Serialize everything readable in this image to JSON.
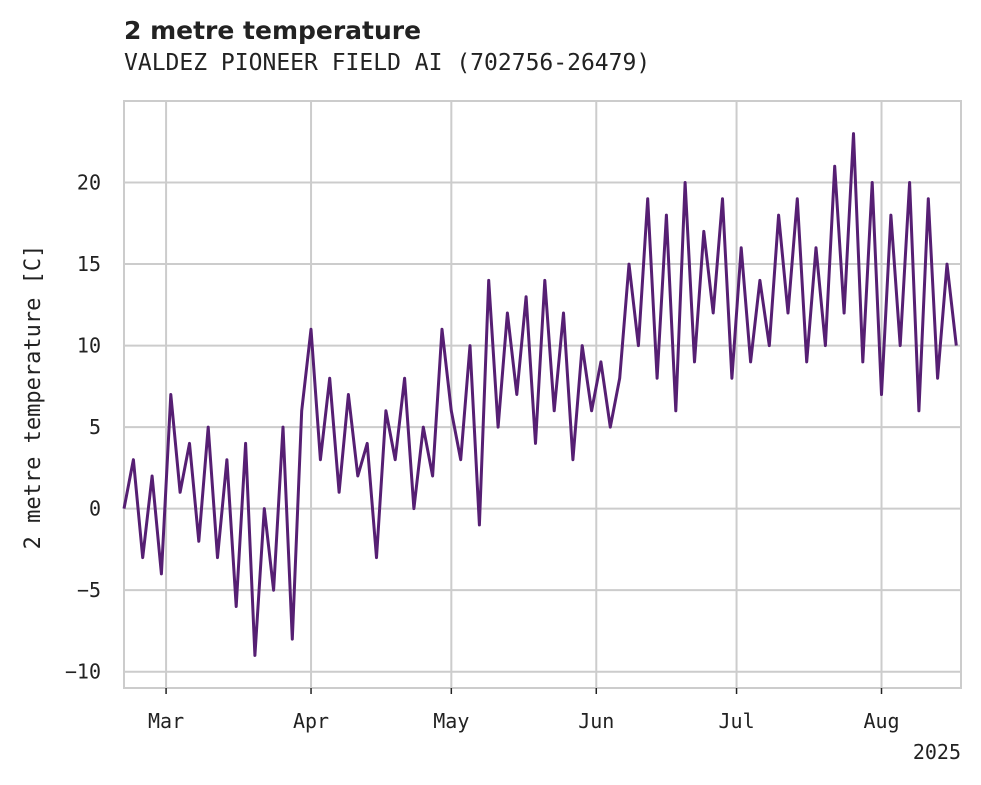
{
  "chart_data": {
    "type": "line",
    "title": "2 metre temperature",
    "subtitle": "VALDEZ PIONEER FIELD AI (702756-26479)",
    "ylabel": "2 metre temperature [C]",
    "xlabel": "",
    "x_range": [
      "2025-02-20",
      "2025-08-18"
    ],
    "ylim": [
      -11,
      25
    ],
    "y_ticks": [
      -10,
      -5,
      0,
      5,
      10,
      15,
      20
    ],
    "x_ticks": [
      {
        "date": "2025-03-01",
        "label": "Mar"
      },
      {
        "date": "2025-04-01",
        "label": "Apr"
      },
      {
        "date": "2025-05-01",
        "label": "May"
      },
      {
        "date": "2025-06-01",
        "label": "Jun"
      },
      {
        "date": "2025-07-01",
        "label": "Jul"
      },
      {
        "date": "2025-08-01",
        "label": "Aug"
      }
    ],
    "year_label": "2025",
    "grid": true,
    "line_color": "#561f73",
    "series": [
      {
        "name": "",
        "x": [
          "2025-02-20",
          "2025-02-22",
          "2025-02-24",
          "2025-02-26",
          "2025-02-28",
          "2025-03-02",
          "2025-03-04",
          "2025-03-06",
          "2025-03-08",
          "2025-03-10",
          "2025-03-12",
          "2025-03-14",
          "2025-03-16",
          "2025-03-18",
          "2025-03-20",
          "2025-03-22",
          "2025-03-24",
          "2025-03-26",
          "2025-03-28",
          "2025-03-30",
          "2025-04-01",
          "2025-04-03",
          "2025-04-05",
          "2025-04-07",
          "2025-04-09",
          "2025-04-11",
          "2025-04-13",
          "2025-04-15",
          "2025-04-17",
          "2025-04-19",
          "2025-04-21",
          "2025-04-23",
          "2025-04-25",
          "2025-04-27",
          "2025-04-29",
          "2025-05-01",
          "2025-05-03",
          "2025-05-05",
          "2025-05-07",
          "2025-05-09",
          "2025-05-11",
          "2025-05-13",
          "2025-05-15",
          "2025-05-17",
          "2025-05-19",
          "2025-05-21",
          "2025-05-23",
          "2025-05-25",
          "2025-05-27",
          "2025-05-29",
          "2025-05-31",
          "2025-06-02",
          "2025-06-04",
          "2025-06-06",
          "2025-06-08",
          "2025-06-10",
          "2025-06-12",
          "2025-06-14",
          "2025-06-16",
          "2025-06-18",
          "2025-06-20",
          "2025-06-22",
          "2025-06-24",
          "2025-06-26",
          "2025-06-28",
          "2025-06-30",
          "2025-07-02",
          "2025-07-04",
          "2025-07-06",
          "2025-07-08",
          "2025-07-10",
          "2025-07-12",
          "2025-07-14",
          "2025-07-16",
          "2025-07-18",
          "2025-07-20",
          "2025-07-22",
          "2025-07-24",
          "2025-07-26",
          "2025-07-28",
          "2025-07-30",
          "2025-08-01",
          "2025-08-03",
          "2025-08-05",
          "2025-08-07",
          "2025-08-09",
          "2025-08-11",
          "2025-08-13",
          "2025-08-15",
          "2025-08-17"
        ],
        "y": [
          0,
          3,
          -3,
          2,
          -4,
          7,
          1,
          4,
          -2,
          5,
          -3,
          3,
          -6,
          4,
          -9,
          0,
          -5,
          5,
          -8,
          6,
          11,
          3,
          8,
          1,
          7,
          2,
          4,
          -3,
          6,
          3,
          8,
          0,
          5,
          2,
          11,
          6,
          3,
          10,
          -1,
          14,
          5,
          12,
          7,
          13,
          4,
          14,
          6,
          12,
          3,
          10,
          6,
          9,
          5,
          8,
          15,
          10,
          19,
          8,
          18,
          6,
          20,
          9,
          17,
          12,
          19,
          8,
          16,
          9,
          14,
          10,
          18,
          12,
          19,
          9,
          16,
          10,
          21,
          12,
          23,
          9,
          20,
          7,
          18,
          10,
          20,
          6,
          19,
          8,
          15,
          10
        ]
      }
    ]
  }
}
